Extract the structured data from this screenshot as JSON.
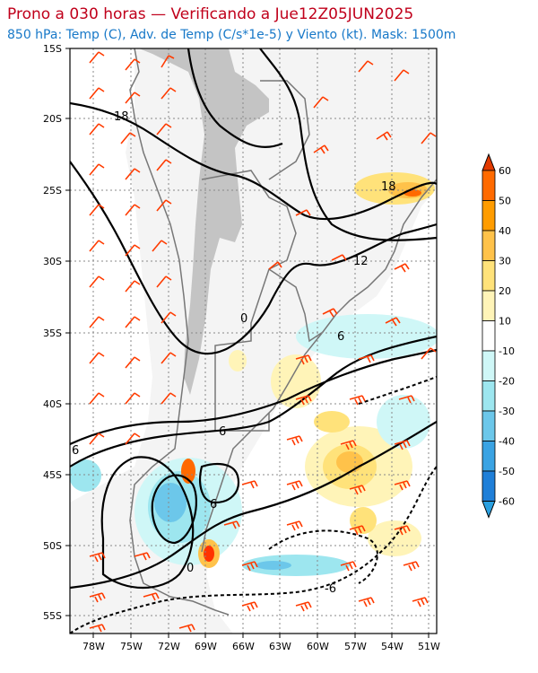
{
  "title": "Prono a 030 horas — Verificando a Jue12Z05JUN2025",
  "subtitle": "850 hPa: Temp (C), Adv. de Temp (C/s*1e-5) y Viento (kt). Mask: 1500m",
  "lat_labels": [
    "15S",
    "20S",
    "25S",
    "30S",
    "35S",
    "40S",
    "45S",
    "50S",
    "55S"
  ],
  "lon_labels": [
    "78W",
    "75W",
    "72W",
    "69W",
    "66W",
    "63W",
    "60W",
    "57W",
    "54W",
    "51W"
  ],
  "colorbar": {
    "labels": [
      "60",
      "50",
      "40",
      "30",
      "20",
      "10",
      "-10",
      "-20",
      "-30",
      "-40",
      "-50",
      "-60"
    ],
    "colors": [
      "#ff3300",
      "#ff6a00",
      "#ff9c00",
      "#ffc24a",
      "#ffe27a",
      "#fff4b8",
      "#ffffff",
      "#cff7f7",
      "#9de6ef",
      "#6cc7ea",
      "#3aa3e3",
      "#1f7fd8",
      "#2aa0e0"
    ]
  },
  "contour_labels": [
    {
      "text": "18"
    },
    {
      "text": "18"
    },
    {
      "text": "12"
    },
    {
      "text": "0"
    },
    {
      "text": "6"
    },
    {
      "text": "6"
    },
    {
      "text": "6"
    },
    {
      "text": "6"
    },
    {
      "text": "0"
    },
    {
      "text": "-6"
    }
  ],
  "colors": {
    "title": "#c0001b",
    "subtitle": "#1778c8",
    "wind": "#ff3b00",
    "mask": "#c4c4c4"
  }
}
